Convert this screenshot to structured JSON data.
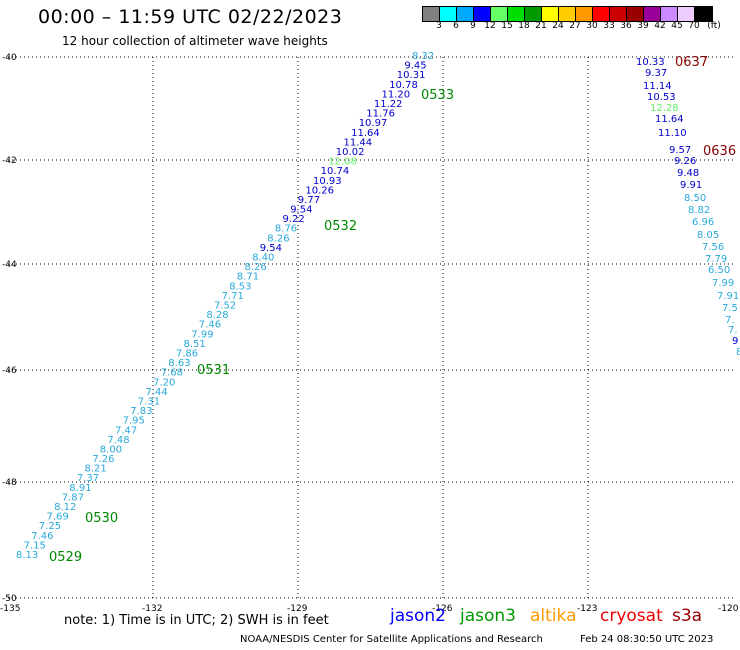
{
  "header": {
    "title": "00:00 – 11:59 UTC 02/22/2023",
    "subtitle": "12 hour collection of altimeter wave heights"
  },
  "legend": {
    "unit": "(ft)",
    "colors": [
      "#808080",
      "#00ffff",
      "#00aaff",
      "#0000ff",
      "#66ff66",
      "#00dd00",
      "#009900",
      "#ffff00",
      "#ffcc00",
      "#ff9900",
      "#ff0000",
      "#cc0000",
      "#990000",
      "#990099",
      "#cc88ff",
      "#eeccff",
      "#000000"
    ],
    "labels": [
      "3",
      "6",
      "9",
      "12",
      "15",
      "18",
      "21",
      "24",
      "27",
      "30",
      "33",
      "36",
      "39",
      "42",
      "45",
      "70"
    ]
  },
  "axes": {
    "lat_labels": [
      "-40",
      "-42",
      "-44",
      "-46",
      "-48",
      "-50"
    ],
    "lon_labels": [
      "-135",
      "-132",
      "-129",
      "-126",
      "-123",
      "-120"
    ]
  },
  "track_times": [
    "0529",
    "0530",
    "0531",
    "0532",
    "0533",
    "0636",
    "0637"
  ],
  "points": [
    {
      "v": "8.13",
      "c": "#29a9d9"
    },
    {
      "v": "7.15",
      "c": "#29a9d9"
    },
    {
      "v": "7.46",
      "c": "#29a9d9"
    },
    {
      "v": "7.25",
      "c": "#29a9d9"
    },
    {
      "v": "7.69",
      "c": "#29a9d9"
    },
    {
      "v": "8.12",
      "c": "#29a9d9"
    },
    {
      "v": "7.87",
      "c": "#29a9d9"
    },
    {
      "v": "8.91",
      "c": "#29a9d9"
    },
    {
      "v": "7.37",
      "c": "#29a9d9"
    },
    {
      "v": "8.21",
      "c": "#29a9d9"
    },
    {
      "v": "7.26",
      "c": "#29a9d9"
    },
    {
      "v": "8.00",
      "c": "#29a9d9"
    },
    {
      "v": "7.48",
      "c": "#29a9d9"
    },
    {
      "v": "7.47",
      "c": "#29a9d9"
    },
    {
      "v": "7.95",
      "c": "#29a9d9"
    },
    {
      "v": "7.83",
      "c": "#29a9d9"
    },
    {
      "v": "7.31",
      "c": "#29a9d9"
    },
    {
      "v": "7.44",
      "c": "#29a9d9"
    },
    {
      "v": "7.20",
      "c": "#29a9d9"
    },
    {
      "v": "7.68",
      "c": "#29a9d9"
    },
    {
      "v": "8.63",
      "c": "#29a9d9"
    },
    {
      "v": "7.86",
      "c": "#29a9d9"
    },
    {
      "v": "8.51",
      "c": "#29a9d9"
    },
    {
      "v": "7.99",
      "c": "#29a9d9"
    },
    {
      "v": "7.46",
      "c": "#29a9d9"
    },
    {
      "v": "8.28",
      "c": "#29a9d9"
    },
    {
      "v": "7.52",
      "c": "#29a9d9"
    },
    {
      "v": "7.71",
      "c": "#29a9d9"
    },
    {
      "v": "8.53",
      "c": "#29a9d9"
    },
    {
      "v": "8.71",
      "c": "#29a9d9"
    },
    {
      "v": "8.26",
      "c": "#29a9d9"
    },
    {
      "v": "8.40",
      "c": "#29a9d9"
    },
    {
      "v": "9.54",
      "c": "#0000cc"
    },
    {
      "v": "8.26",
      "c": "#29a9d9"
    },
    {
      "v": "8.76",
      "c": "#29a9d9"
    },
    {
      "v": "9.22",
      "c": "#0000cc"
    },
    {
      "v": "9.54",
      "c": "#0000cc"
    },
    {
      "v": "9.77",
      "c": "#0000cc"
    },
    {
      "v": "10.26",
      "c": "#0000cc"
    },
    {
      "v": "10.93",
      "c": "#0000cc"
    },
    {
      "v": "10.74",
      "c": "#0000cc"
    },
    {
      "v": "12.08",
      "c": "#66ee66"
    },
    {
      "v": "10.02",
      "c": "#0000cc"
    },
    {
      "v": "11.44",
      "c": "#0000cc"
    },
    {
      "v": "11.64",
      "c": "#0000cc"
    },
    {
      "v": "10.97",
      "c": "#0000cc"
    },
    {
      "v": "11.76",
      "c": "#0000cc"
    },
    {
      "v": "11.22",
      "c": "#0000cc"
    },
    {
      "v": "11.20",
      "c": "#0000cc"
    },
    {
      "v": "10.78",
      "c": "#0000cc"
    },
    {
      "v": "10.31",
      "c": "#0000cc"
    },
    {
      "v": "9.45",
      "c": "#0000cc"
    },
    {
      "v": "8.32",
      "c": "#29a9d9"
    },
    {
      "v": "10.33",
      "c": "#0000cc"
    },
    {
      "v": "9.37",
      "c": "#0000cc"
    },
    {
      "v": "11.14",
      "c": "#0000cc"
    },
    {
      "v": "10.53",
      "c": "#0000cc"
    },
    {
      "v": "12.28",
      "c": "#66ee66"
    },
    {
      "v": "11.64",
      "c": "#0000cc"
    },
    {
      "v": "11.10",
      "c": "#0000cc"
    },
    {
      "v": "9.57",
      "c": "#0000cc"
    },
    {
      "v": "9.26",
      "c": "#0000cc"
    },
    {
      "v": "9.48",
      "c": "#0000cc"
    },
    {
      "v": "9.91",
      "c": "#0000cc"
    },
    {
      "v": "8.50",
      "c": "#29a9d9"
    },
    {
      "v": "8.82",
      "c": "#29a9d9"
    },
    {
      "v": "6.96",
      "c": "#29a9d9"
    },
    {
      "v": "8.05",
      "c": "#29a9d9"
    },
    {
      "v": "7.56",
      "c": "#29a9d9"
    },
    {
      "v": "7.79",
      "c": "#29a9d9"
    },
    {
      "v": "6.50",
      "c": "#29a9d9"
    },
    {
      "v": "7.99",
      "c": "#29a9d9"
    },
    {
      "v": "7.91",
      "c": "#29a9d9"
    },
    {
      "v": "7.5",
      "c": "#29a9d9"
    },
    {
      "v": "7.",
      "c": "#29a9d9"
    },
    {
      "v": "7.",
      "c": "#29a9d9"
    },
    {
      "v": "9",
      "c": "#0000cc"
    },
    {
      "v": "8",
      "c": "#29a9d9"
    }
  ],
  "footer": {
    "note": "note: 1) Time is in UTC; 2) SWH is in feet",
    "satellites": [
      {
        "name": "jason2",
        "color": "#0000ff"
      },
      {
        "name": "jason3",
        "color": "#009900"
      },
      {
        "name": "altika",
        "color": "#ff9900"
      },
      {
        "name": "cryosat",
        "color": "#ee0000"
      },
      {
        "name": "s3a",
        "color": "#990000"
      }
    ],
    "credit": "NOAA/NESDIS Center for Satellite Applications and Research",
    "timestamp": "Feb 24 08:30:50 UTC 2023"
  }
}
